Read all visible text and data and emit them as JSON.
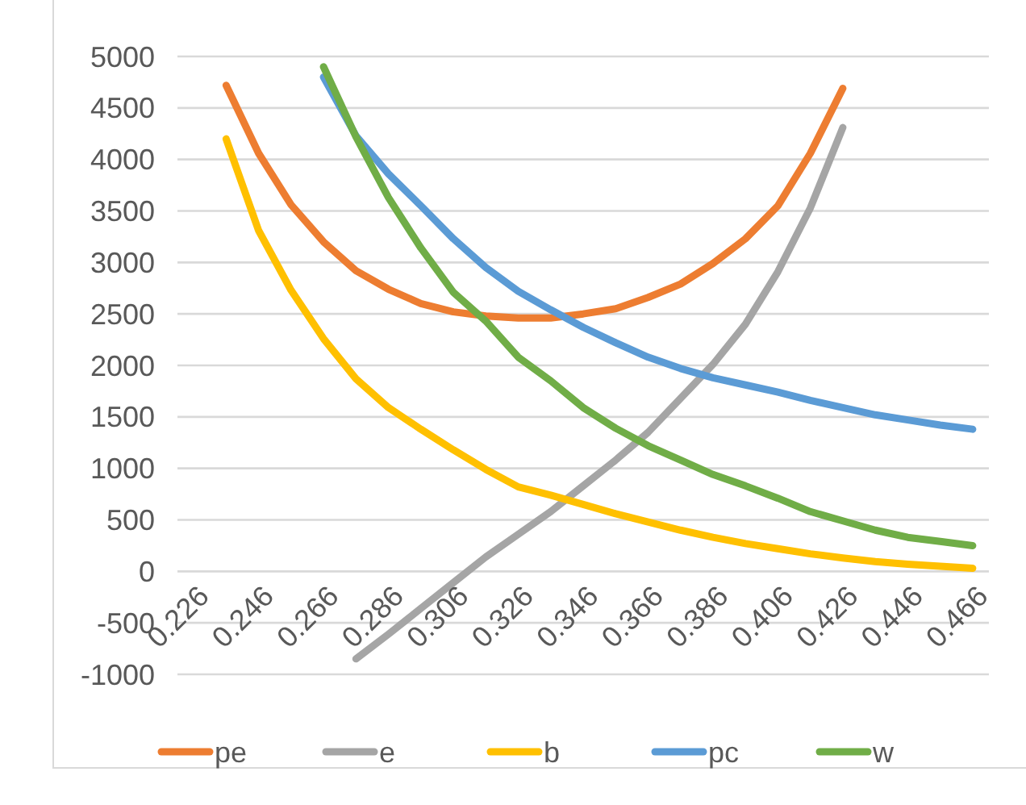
{
  "chart_data": {
    "type": "line",
    "categories": [
      "0.226",
      null,
      "0.246",
      null,
      "0.266",
      null,
      "0.286",
      null,
      "0.306",
      null,
      "0.326",
      null,
      "0.346",
      null,
      "0.366",
      null,
      "0.386",
      null,
      "0.406",
      null,
      "0.426",
      null,
      "0.446",
      null,
      "0.466"
    ],
    "series": [
      {
        "name": "pe",
        "color": "#ed7d31",
        "values": [
          null,
          4720,
          4060,
          3560,
          3200,
          2920,
          2740,
          2600,
          2520,
          2480,
          2460,
          2460,
          2500,
          2550,
          2660,
          2790,
          2990,
          3230,
          3550,
          4060,
          4690,
          null,
          null,
          null,
          null
        ]
      },
      {
        "name": "e",
        "color": "#a5a5a5",
        "values": [
          null,
          null,
          null,
          null,
          null,
          -850,
          -610,
          -360,
          -110,
          140,
          360,
          580,
          830,
          1080,
          1350,
          1680,
          2010,
          2400,
          2910,
          3530,
          4310,
          null,
          null,
          null,
          null
        ]
      },
      {
        "name": "b",
        "color": "#ffc000",
        "values": [
          null,
          4200,
          3310,
          2730,
          2260,
          1870,
          1590,
          1380,
          1180,
          990,
          820,
          740,
          650,
          560,
          480,
          400,
          330,
          270,
          220,
          170,
          130,
          95,
          70,
          50,
          30
        ]
      },
      {
        "name": "pc",
        "color": "#5b9bd5",
        "values": [
          null,
          null,
          null,
          null,
          4800,
          4230,
          3860,
          3550,
          3230,
          2950,
          2720,
          2540,
          2370,
          2220,
          2080,
          1970,
          1880,
          1810,
          1740,
          1660,
          1590,
          1520,
          1470,
          1420,
          1380
        ]
      },
      {
        "name": "w",
        "color": "#70ad47",
        "values": [
          null,
          null,
          null,
          null,
          4900,
          4220,
          3630,
          3140,
          2710,
          2430,
          2080,
          1850,
          1590,
          1390,
          1220,
          1080,
          940,
          830,
          710,
          580,
          490,
          400,
          330,
          290,
          250
        ]
      }
    ],
    "ylim": [
      -1000,
      5000
    ],
    "yticks": [
      -1000,
      -500,
      0,
      500,
      1000,
      1500,
      2000,
      2500,
      3000,
      3500,
      4000,
      4500,
      5000
    ],
    "grid": "y",
    "legend": "bottom"
  }
}
